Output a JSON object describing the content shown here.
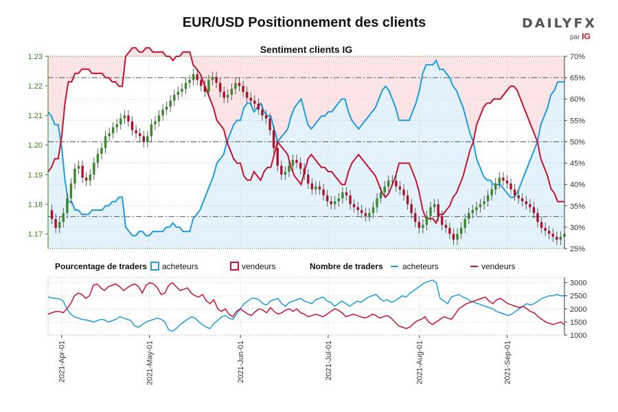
{
  "header": {
    "title": "EUR/USD Positionnement des clients",
    "brand_main": "DAILYFX",
    "brand_par": "par",
    "brand_ig": "IG"
  },
  "colors": {
    "buyers": "#1a9be0",
    "sellers": "#c8102e",
    "candle_up": "#3a8a2a",
    "candle_down": "#b0122e",
    "red_zone": "#fde4e6",
    "blue_zone": "#e4f3fb",
    "left_axis": "#3a7a1a",
    "grid": "#c8c8c8"
  },
  "chart_data": [
    {
      "type": "line",
      "title": "Sentiment clients IG",
      "y_left": {
        "ticks": [
          "1.17",
          "1.18",
          "1.19",
          "1.20",
          "1.21",
          "1.22",
          "1.23"
        ],
        "range": [
          1.165,
          1.23
        ]
      },
      "y_right": {
        "ticks": [
          "25%",
          "30%",
          "35%",
          "40%",
          "45%",
          "50%",
          "55%",
          "60%",
          "65%",
          "70%"
        ],
        "range": [
          25,
          70
        ]
      },
      "x_ticks": [
        "2021-Apr-01",
        "2021-May-01",
        "2021-Jun-01",
        "2021-Jul-01",
        "2021-Aug-01",
        "2021-Sep-01"
      ],
      "grid": true,
      "series": [
        {
          "name": "acheteurs",
          "values": [
            57,
            56,
            54,
            54,
            49,
            41,
            36,
            36,
            34,
            34,
            33,
            33,
            33,
            34,
            34,
            34,
            34,
            35,
            35,
            36,
            36,
            37,
            37,
            30,
            29,
            28,
            28,
            29,
            29,
            28,
            28,
            29,
            29,
            29,
            29,
            30,
            30,
            31,
            30,
            30,
            29,
            29,
            29,
            32,
            33,
            34,
            36,
            38,
            40,
            42,
            45,
            46,
            47,
            50,
            52,
            54,
            55,
            55,
            58,
            59,
            59,
            57,
            58,
            59,
            57,
            56,
            56,
            53,
            50,
            51,
            52,
            53,
            56,
            58,
            59,
            60,
            57,
            54,
            53,
            54,
            55,
            56,
            56,
            57,
            57,
            58,
            59,
            60,
            60,
            57,
            55,
            54,
            53,
            54,
            55,
            56,
            57,
            58,
            60,
            62,
            63,
            62,
            60,
            58,
            55,
            55,
            55,
            55,
            57,
            59,
            62,
            66,
            68,
            68,
            68,
            69,
            67,
            67,
            66,
            65,
            63,
            62,
            60,
            58,
            55,
            52,
            50,
            46,
            44,
            42,
            41,
            41,
            40,
            40,
            40,
            39,
            38,
            37,
            37,
            38,
            40,
            42,
            44,
            46,
            48,
            50,
            54,
            56,
            58,
            61,
            62,
            64,
            64,
            64
          ]
        },
        {
          "name": "vendeurs",
          "values": [
            43,
            44,
            46,
            46,
            51,
            59,
            64,
            64,
            66,
            66,
            67,
            67,
            67,
            66,
            66,
            66,
            66,
            65,
            65,
            64,
            64,
            63,
            63,
            70,
            71,
            72,
            72,
            71,
            71,
            72,
            72,
            71,
            71,
            71,
            71,
            70,
            70,
            69,
            70,
            70,
            71,
            71,
            71,
            68,
            67,
            66,
            64,
            62,
            60,
            58,
            55,
            54,
            53,
            50,
            48,
            46,
            45,
            45,
            42,
            41,
            41,
            43,
            42,
            41,
            43,
            44,
            44,
            47,
            50,
            49,
            48,
            47,
            44,
            42,
            41,
            40,
            43,
            46,
            47,
            46,
            45,
            44,
            44,
            43,
            43,
            42,
            41,
            40,
            40,
            43,
            45,
            46,
            47,
            46,
            45,
            44,
            43,
            42,
            40,
            38,
            37,
            38,
            40,
            42,
            45,
            45,
            45,
            45,
            43,
            41,
            38,
            34,
            32,
            32,
            32,
            31,
            33,
            33,
            34,
            35,
            37,
            38,
            40,
            42,
            45,
            48,
            50,
            54,
            56,
            58,
            59,
            59,
            60,
            60,
            60,
            61,
            62,
            63,
            63,
            62,
            60,
            58,
            56,
            54,
            52,
            50,
            46,
            44,
            42,
            39,
            38,
            36,
            36,
            36
          ]
        },
        {
          "name": "EUR/USD",
          "values": [
            1.178,
            1.175,
            1.172,
            1.174,
            1.177,
            1.182,
            1.187,
            1.192,
            1.193,
            1.189,
            1.188,
            1.19,
            1.194,
            1.197,
            1.199,
            1.203,
            1.204,
            1.206,
            1.207,
            1.209,
            1.21,
            1.208,
            1.205,
            1.204,
            1.203,
            1.201,
            1.203,
            1.207,
            1.208,
            1.21,
            1.212,
            1.213,
            1.215,
            1.217,
            1.218,
            1.219,
            1.221,
            1.222,
            1.224,
            1.222,
            1.22,
            1.218,
            1.222,
            1.223,
            1.221,
            1.218,
            1.216,
            1.217,
            1.219,
            1.221,
            1.22,
            1.218,
            1.216,
            1.215,
            1.214,
            1.212,
            1.21,
            1.209,
            1.205,
            1.199,
            1.193,
            1.19,
            1.191,
            1.193,
            1.195,
            1.194,
            1.192,
            1.19,
            1.187,
            1.185,
            1.186,
            1.185,
            1.183,
            1.181,
            1.18,
            1.181,
            1.182,
            1.184,
            1.183,
            1.18,
            1.179,
            1.178,
            1.177,
            1.176,
            1.177,
            1.179,
            1.182,
            1.184,
            1.186,
            1.188,
            1.188,
            1.186,
            1.185,
            1.183,
            1.18,
            1.177,
            1.174,
            1.172,
            1.173,
            1.176,
            1.179,
            1.18,
            1.176,
            1.173,
            1.172,
            1.17,
            1.168,
            1.17,
            1.172,
            1.175,
            1.177,
            1.178,
            1.179,
            1.18,
            1.181,
            1.183,
            1.185,
            1.187,
            1.189,
            1.188,
            1.187,
            1.185,
            1.183,
            1.182,
            1.181,
            1.18,
            1.179,
            1.177,
            1.174,
            1.172,
            1.171,
            1.17,
            1.169,
            1.168,
            1.169,
            1.17
          ]
        }
      ]
    },
    {
      "type": "line",
      "y_ticks": [
        "1000",
        "1500",
        "2000",
        "2500",
        "3000"
      ],
      "y_range": [
        1000,
        3200
      ],
      "legend": {
        "pct_title": "Pourcentage de traders",
        "pct_buyers": "acheteurs",
        "pct_sellers": "vendeurs",
        "count_title": "Nombre de traders",
        "count_buyers": "acheteurs",
        "count_sellers": "vendeurs"
      },
      "series": [
        {
          "name": "acheteurs",
          "values": [
            2450,
            2420,
            2400,
            2380,
            2300,
            2000,
            1800,
            1700,
            1650,
            1600,
            1580,
            1550,
            1500,
            1550,
            1600,
            1580,
            1500,
            1550,
            1600,
            1700,
            1650,
            1600,
            1550,
            1350,
            1300,
            1400,
            1500,
            1550,
            1600,
            1650,
            1600,
            1500,
            1200,
            1150,
            1250,
            1400,
            1500,
            1600,
            1700,
            1650,
            1500,
            1400,
            1300,
            1250,
            1450,
            1550,
            1700,
            1750,
            1650,
            1600,
            1800,
            2000,
            2200,
            2300,
            2400,
            2400,
            2350,
            2200,
            2150,
            2300,
            2350,
            2400,
            2200,
            2100,
            2250,
            2300,
            2350,
            2400,
            2300,
            2250,
            2200,
            2350,
            2400,
            2450,
            2300,
            2250,
            2100,
            2200,
            2300,
            2200,
            2100,
            2200,
            2300,
            2250,
            2350,
            2450,
            2500,
            2550,
            2400,
            2300,
            2350,
            2250,
            2300,
            2400,
            2500,
            2450,
            2600,
            2700,
            2800,
            2900,
            3000,
            3050,
            3100,
            3000,
            2400,
            2300,
            2200,
            2450,
            2500,
            2550,
            2450,
            2400,
            2300,
            2250,
            2200,
            2150,
            2100,
            2050,
            2000,
            1900,
            1850,
            1800,
            1750,
            1800,
            1900,
            2000,
            2100,
            2200,
            2150,
            2200,
            2300,
            2400,
            2450,
            2500,
            2500,
            2550,
            2500,
            2500
          ]
        },
        {
          "name": "vendeurs",
          "values": [
            1800,
            1850,
            1900,
            1900,
            1850,
            2000,
            2200,
            2500,
            2600,
            2550,
            2400,
            2500,
            2900,
            2950,
            2800,
            2700,
            2850,
            2900,
            2950,
            2850,
            2700,
            2800,
            2900,
            2950,
            2850,
            2600,
            2900,
            3000,
            2950,
            2800,
            2550,
            2600,
            2900,
            3000,
            2850,
            2700,
            2750,
            2800,
            2600,
            2500,
            2450,
            2550,
            2300,
            2200,
            2350,
            2000,
            1900,
            2000,
            1800,
            1700,
            1900,
            2000,
            1900,
            1800,
            1750,
            1900,
            2000,
            1950,
            1850,
            2050,
            1900,
            1800,
            1850,
            1950,
            2000,
            1900,
            2000,
            1850,
            1800,
            1700,
            1750,
            1800,
            1750,
            1700,
            1800,
            1900,
            2000,
            1950,
            1850,
            1700,
            1750,
            1800,
            1750,
            1700,
            1650,
            1700,
            1800,
            1750,
            1650,
            1700,
            1750,
            1650,
            1500,
            1350,
            1300,
            1250,
            1300,
            1450,
            1550,
            1600,
            1700,
            1500,
            1400,
            1500,
            1600,
            1700,
            1650,
            1600,
            1800,
            2000,
            2100,
            2200,
            2250,
            2300,
            2350,
            2400,
            2450,
            2300,
            2200,
            2350,
            2400,
            2300,
            2200,
            2150,
            2100,
            2050,
            2100,
            2000,
            1900,
            1850,
            1700,
            1600,
            1500,
            1450,
            1400,
            1450,
            1500,
            1400
          ]
        }
      ]
    }
  ]
}
